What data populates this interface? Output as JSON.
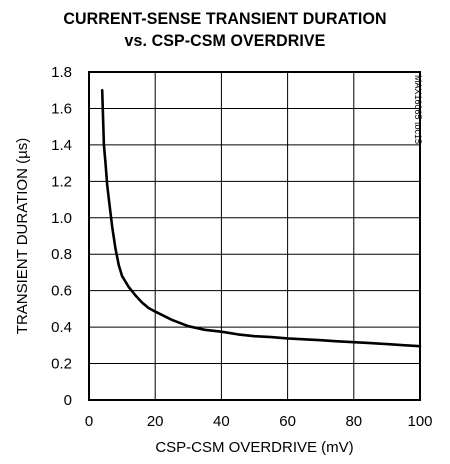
{
  "chart_data": {
    "type": "line",
    "title_line1": "CURRENT-SENSE TRANSIENT DURATION",
    "title_line2": "vs. CSP-CSM OVERDRIVE",
    "xlabel": "CSP-CSM OVERDRIVE (mV)",
    "ylabel": "TRANSIENT DURATION (µs)",
    "xlim": [
      0,
      100
    ],
    "ylim": [
      0,
      1.8
    ],
    "x_ticks": [
      "0",
      "20",
      "40",
      "60",
      "80",
      "100"
    ],
    "y_ticks": [
      "0",
      "0.2",
      "0.4",
      "0.6",
      "0.8",
      "1.0",
      "1.2",
      "1.4",
      "1.6",
      "1.8"
    ],
    "grid": true,
    "code": "MAX16065 toc15",
    "series": [
      {
        "x": [
          4,
          4.5,
          5,
          5.5,
          6,
          7,
          8,
          9,
          10,
          12,
          14,
          16,
          18,
          20,
          25,
          30,
          35,
          40,
          45,
          50,
          55,
          60,
          65,
          70,
          75,
          80,
          85,
          90,
          95,
          100
        ],
        "y": [
          1.7,
          1.4,
          1.3,
          1.18,
          1.1,
          0.95,
          0.83,
          0.74,
          0.68,
          0.62,
          0.575,
          0.535,
          0.505,
          0.485,
          0.44,
          0.405,
          0.385,
          0.375,
          0.36,
          0.35,
          0.345,
          0.338,
          0.333,
          0.328,
          0.322,
          0.317,
          0.312,
          0.307,
          0.301,
          0.295
        ]
      }
    ]
  }
}
